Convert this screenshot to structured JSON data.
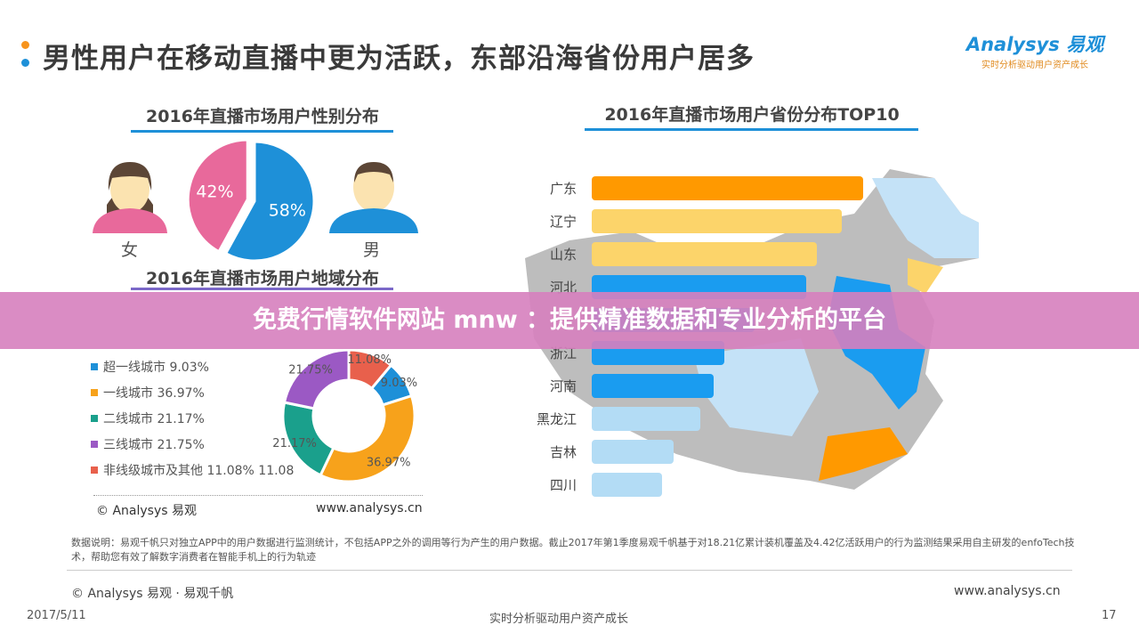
{
  "header": {
    "title": "男性用户在移动直播中更为活跃，东部沿海省份用户居多",
    "logo_text": "Analysys 易观",
    "logo_tagline": "实时分析驱动用户资产成长",
    "bullet_colors": [
      "#f7941d",
      "#1e90d8"
    ]
  },
  "banner": {
    "text": "免费行情软件网站 mnw ：提供精准数据和专业分析的平台"
  },
  "gender": {
    "female_label": "女",
    "male_label": "男"
  },
  "left_footer": {
    "copyright": "© Analysys 易观",
    "url": "www.analysys.cn"
  },
  "chart_data": [
    {
      "type": "pie",
      "title": "2016年直播市场用户性别分布",
      "categories": [
        "女",
        "男"
      ],
      "values": [
        42,
        58
      ],
      "labels": [
        "42%",
        "58%"
      ],
      "colors": [
        "#e8699b",
        "#1e90d8"
      ]
    },
    {
      "type": "pie",
      "title": "2016年直播市场用户地域分布",
      "donut": true,
      "categories": [
        "超一线城市",
        "一线城市",
        "二线城市",
        "三线城市",
        "非线级城市及其他"
      ],
      "values": [
        9.03,
        36.97,
        21.17,
        21.75,
        11.08
      ],
      "legend": [
        "超一线城市 9.03%",
        "一线城市 36.97%",
        "二线城市 21.17%",
        "三线城市 21.75%",
        "非线级城市及其他 11.08% 11.08"
      ],
      "labels": [
        "9.03%",
        "36.97%",
        "21.17%",
        "21.75%",
        "11.08%"
      ],
      "colors": [
        "#1e90d8",
        "#f7a21b",
        "#1aa08c",
        "#9b59c4",
        "#e8604c"
      ],
      "legend_placement": "left"
    },
    {
      "type": "bar",
      "orientation": "horizontal",
      "title": "2016年直播市场用户省份分布TOP10",
      "categories": [
        "广东",
        "辽宁",
        "山东",
        "河北",
        "",
        "浙江",
        "河南",
        "黑龙江",
        "吉林",
        "四川"
      ],
      "values": [
        100,
        92,
        83,
        79,
        null,
        49,
        45,
        40,
        30,
        26
      ],
      "colors": [
        "#ff9900",
        "#fcd46a",
        "#fcd46a",
        "#1a9cf0",
        "#1a9cf0",
        "#1a9cf0",
        "#1a9cf0",
        "#b3dcf5",
        "#b3dcf5",
        "#b3dcf5"
      ]
    }
  ],
  "footnote": {
    "text": "数据说明：易观千帆只对独立APP中的用户数据进行监测统计，不包括APP之外的调用等行为产生的用户数据。截止2017年第1季度易观千帆基于对18.21亿累计装机覆盖及4.42亿活跃用户的行为监测结果采用自主研发的enfoTech技术，帮助您有效了解数字消费者在智能手机上的行为轨迹"
  },
  "footer": {
    "copyright": "© Analysys 易观 · 易观千帆",
    "url": "www.analysys.cn",
    "date": "2017/5/11",
    "slogan": "实时分析驱动用户资产成长",
    "page": "17"
  }
}
